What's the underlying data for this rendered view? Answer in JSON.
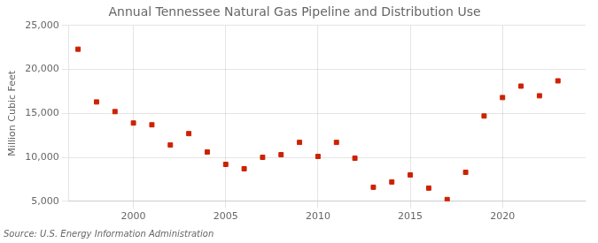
{
  "chart_data": {
    "type": "scatter",
    "title": "Annual Tennessee Natural Gas Pipeline and Distribution Use",
    "ylabel": "Million Cubic Feet",
    "source": "Source: U.S. Energy Information Administration",
    "x": [
      1997,
      1998,
      1999,
      2000,
      2001,
      2002,
      2003,
      2004,
      2005,
      2006,
      2007,
      2008,
      2009,
      2010,
      2011,
      2012,
      2013,
      2014,
      2015,
      2016,
      2017,
      2018,
      2019,
      2020,
      2021,
      2022,
      2023
    ],
    "values": [
      22300,
      16300,
      15200,
      13900,
      13700,
      11400,
      12700,
      10600,
      9200,
      8700,
      10000,
      10300,
      11700,
      10100,
      11700,
      9900,
      6600,
      7200,
      8000,
      6500,
      5200,
      8300,
      14700,
      16800,
      18100,
      17000,
      18700
    ],
    "color": "#cc2200",
    "marker": "square",
    "xlim": [
      1996.5,
      2024.5
    ],
    "xticks": [
      2000,
      2005,
      2010,
      2015,
      2020
    ],
    "ylim": [
      5000,
      25000
    ],
    "yticks": [
      {
        "value": 5000,
        "label": "5,000"
      },
      {
        "value": 10000,
        "label": "10,000"
      },
      {
        "value": 15000,
        "label": "15,000"
      },
      {
        "value": 20000,
        "label": "20,000"
      },
      {
        "value": 25000,
        "label": "25,000"
      }
    ],
    "grid": true
  }
}
